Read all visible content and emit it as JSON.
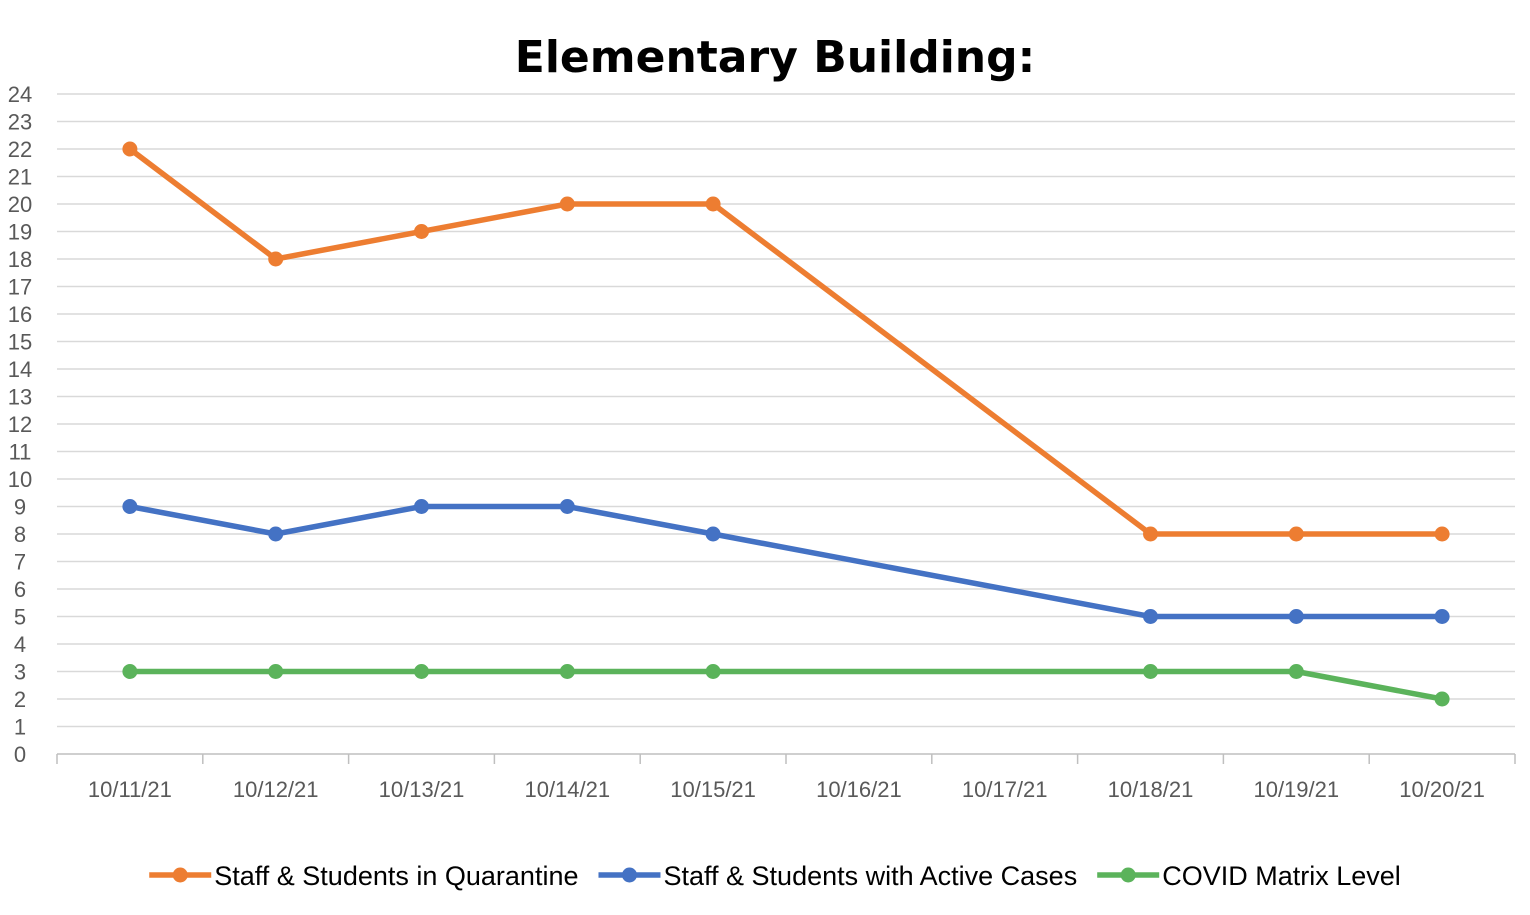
{
  "chart_data": {
    "type": "line",
    "title": "Elementary Building:",
    "xlabel": "",
    "ylabel": "",
    "categories": [
      "10/11/21",
      "10/12/21",
      "10/13/21",
      "10/14/21",
      "10/15/21",
      "10/16/21",
      "10/17/21",
      "10/18/21",
      "10/19/21",
      "10/20/21"
    ],
    "ylim": [
      0,
      24
    ],
    "ytick_step": 1,
    "grid": true,
    "legend_position": "bottom",
    "series": [
      {
        "name": "Staff & Students in Quarantine",
        "color": "#ED7D31",
        "values": [
          22,
          18,
          19,
          20,
          20,
          null,
          null,
          8,
          8,
          8
        ]
      },
      {
        "name": "Staff & Students with Active Cases",
        "color": "#4472C4",
        "values": [
          9,
          8,
          9,
          9,
          8,
          null,
          null,
          5,
          5,
          5
        ]
      },
      {
        "name": "COVID Matrix Level",
        "color": "#5BB35B",
        "values": [
          3,
          3,
          3,
          3,
          3,
          null,
          null,
          3,
          3,
          2
        ]
      }
    ]
  }
}
